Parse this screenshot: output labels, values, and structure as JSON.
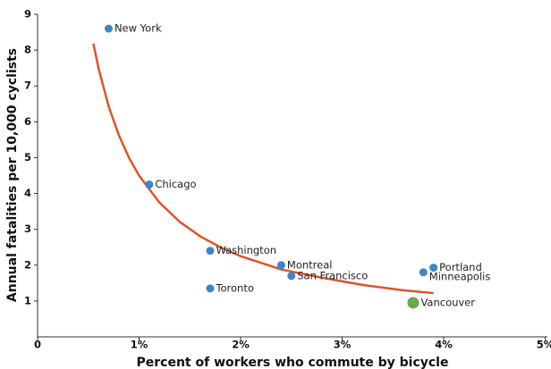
{
  "chart_data": {
    "type": "scatter",
    "xlabel": "Percent of workers who commute by bicycle",
    "ylabel": "Annual fatalities per 10,000 cyclists",
    "xlim": [
      0,
      5
    ],
    "ylim": [
      0,
      9
    ],
    "xticks": [
      0,
      {
        "value": 1,
        "label": "1%"
      },
      {
        "value": 2,
        "label": "2%"
      },
      {
        "value": 3,
        "label": "3%"
      },
      {
        "value": 4,
        "label": "4%"
      },
      {
        "value": 5,
        "label": "5%"
      }
    ],
    "yticks": [
      1,
      2,
      3,
      4,
      5,
      6,
      7,
      8,
      9
    ],
    "labels": [
      "New York",
      "Chicago",
      "Washington",
      "Toronto",
      "Montreal",
      "San Francisco",
      "Portland",
      "Minneapolis",
      "Vancouver"
    ],
    "x": [
      0.7,
      1.1,
      1.7,
      1.7,
      2.4,
      2.5,
      3.9,
      3.8,
      3.7
    ],
    "y": [
      8.6,
      4.25,
      2.4,
      1.35,
      2.0,
      1.7,
      1.93,
      1.8,
      0.95
    ],
    "highlight": [
      false,
      false,
      false,
      false,
      false,
      false,
      false,
      false,
      true
    ],
    "color": "#3d85c6",
    "highlight_color": "#6aa84f",
    "fit": {
      "color": "#e0522a",
      "x": [
        0.55,
        0.6,
        0.7,
        0.8,
        0.9,
        1.0,
        1.2,
        1.4,
        1.6,
        1.8,
        2.0,
        2.4,
        2.8,
        3.2,
        3.6,
        3.9
      ],
      "y": [
        8.18,
        7.5,
        6.43,
        5.63,
        5.0,
        4.5,
        3.75,
        3.21,
        2.81,
        2.5,
        2.25,
        1.88,
        1.65,
        1.45,
        1.3,
        1.22
      ]
    }
  }
}
